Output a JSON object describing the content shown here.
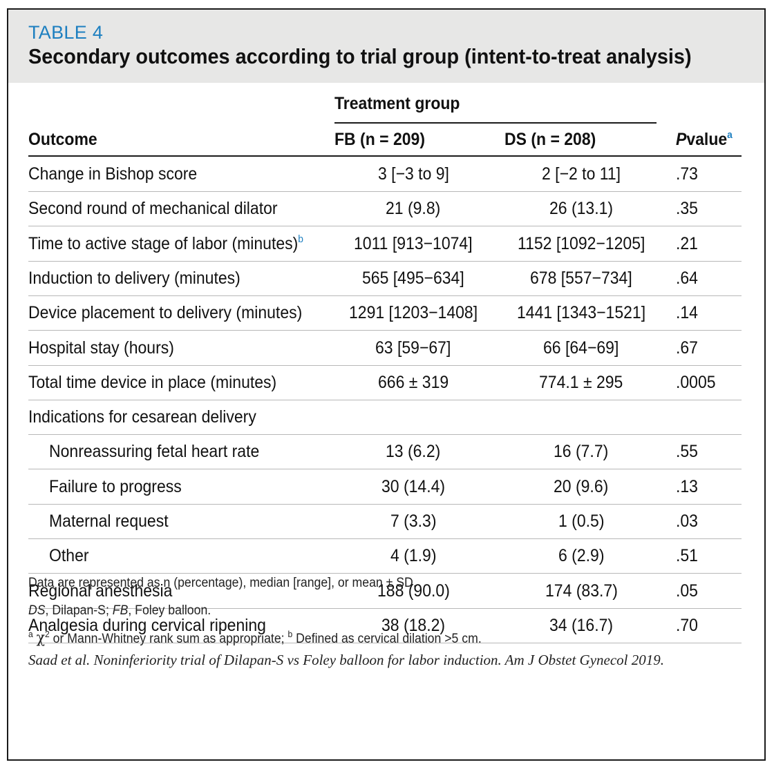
{
  "header": {
    "label": "TABLE 4",
    "title": "Secondary outcomes according to trial group (intent-to-treat analysis)"
  },
  "columns": {
    "outcome": "Outcome",
    "group": "Treatment group",
    "fb": "FB (n = 209)",
    "ds": "DS (n = 208)",
    "p_italic": "P",
    "p_rest": "value",
    "p_sup": "a"
  },
  "rows": [
    {
      "outcome": "Change in Bishop score",
      "fb": "3 [−3 to 9]",
      "ds": "2 [−2 to 11]",
      "p": ".73"
    },
    {
      "outcome": "Second round of mechanical dilator",
      "fb": "21 (9.8)",
      "ds": "26 (13.1)",
      "p": ".35"
    },
    {
      "outcome": "Time to active stage of labor (minutes)",
      "sup": "b",
      "fb": "1011 [913−1074]",
      "ds": "1152 [1092−1205]",
      "p": ".21"
    },
    {
      "outcome": "Induction to delivery (minutes)",
      "fb": "565 [495−634]",
      "ds": "678 [557−734]",
      "p": ".64"
    },
    {
      "outcome": "Device placement to delivery (minutes)",
      "fb": "1291 [1203−1408]",
      "ds": "1441 [1343−1521]",
      "p": ".14"
    },
    {
      "outcome": "Hospital stay (hours)",
      "fb": "63 [59−67]",
      "ds": "66 [64−69]",
      "p": ".67"
    },
    {
      "outcome": "Total time device in place (minutes)",
      "fb": "666 ± 319",
      "ds": "774.1 ± 295",
      "p": ".0005"
    },
    {
      "outcome": "Indications for cesarean delivery",
      "fb": "",
      "ds": "",
      "p": ""
    },
    {
      "outcome": "Nonreassuring fetal heart rate",
      "indent": true,
      "fb": "13 (6.2)",
      "ds": "16 (7.7)",
      "p": ".55"
    },
    {
      "outcome": "Failure to progress",
      "indent": true,
      "fb": "30 (14.4)",
      "ds": "20 (9.6)",
      "p": ".13"
    },
    {
      "outcome": "Maternal request",
      "indent": true,
      "fb": "7 (3.3)",
      "ds": "1 (0.5)",
      "p": ".03"
    },
    {
      "outcome": "Other",
      "indent": true,
      "fb": "4 (1.9)",
      "ds": "6 (2.9)",
      "p": ".51"
    },
    {
      "outcome": "Regional anesthesia",
      "fb": "188 (90.0)",
      "ds": "174 (83.7)",
      "p": ".05"
    },
    {
      "outcome": "Analgesia during cervical ripening",
      "fb": "38 (18.2)",
      "ds": "34 (16.7)",
      "p": ".70"
    }
  ],
  "footnotes": {
    "data_note": "Data are represented as n (percentage), median [range], or mean ± SD.",
    "abbr_ds": "DS",
    "abbr_ds_text": ", Dilapan-S; ",
    "abbr_fb": "FB",
    "abbr_fb_text": ", Foley balloon.",
    "note_a_sup": "a",
    "note_a_chi": "χ",
    "note_a_chi_sup": "2",
    "note_a_text": " or Mann-Whitney rank sum as appropriate; ",
    "note_b_sup": "b",
    "note_b_text": " Defined as cervical dilation >5 cm.",
    "citation": "Saad et al. Noninferiority trial of Dilapan-S vs Foley balloon for labor induction. Am J Obstet Gynecol 2019."
  },
  "colors": {
    "accent": "#1d7fc0",
    "header_bg": "#e7e7e6",
    "rule": "#1a1a1a",
    "row_rule": "#b7b7b7"
  }
}
